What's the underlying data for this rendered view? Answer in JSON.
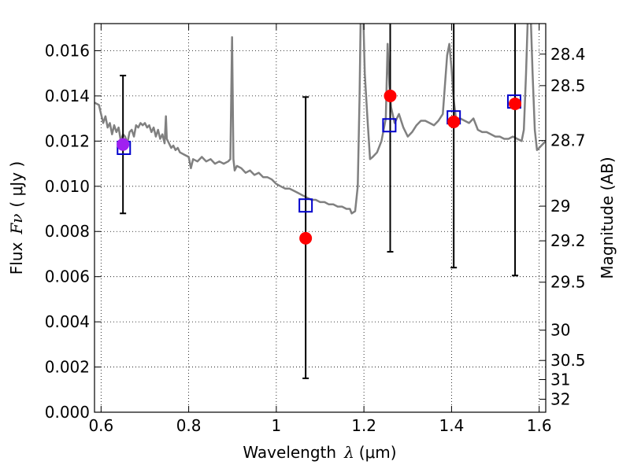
{
  "chart_data": {
    "type": "scatter",
    "xlabel": {
      "text": "Wavelength",
      "symbol": "λ",
      "unit": "(μm)"
    },
    "ylabel": {
      "text": "Flux",
      "symbol": "Fν",
      "unit": "( μJy )"
    },
    "ylabel_right": "Magnitude (AB)",
    "xlim": [
      0.585,
      1.615
    ],
    "ylim": [
      0.0,
      0.0172
    ],
    "grid": true,
    "grid_style": "dotted",
    "x_ticks": [
      {
        "value": 0.6,
        "label": "0.6"
      },
      {
        "value": 0.8,
        "label": "0.8"
      },
      {
        "value": 1.0,
        "label": "1"
      },
      {
        "value": 1.2,
        "label": "1.2"
      },
      {
        "value": 1.4,
        "label": "1.4"
      },
      {
        "value": 1.6,
        "label": "1.6"
      }
    ],
    "y_ticks": [
      {
        "value": 0.0,
        "label": "0.000"
      },
      {
        "value": 0.002,
        "label": "0.002"
      },
      {
        "value": 0.004,
        "label": "0.004"
      },
      {
        "value": 0.006,
        "label": "0.006"
      },
      {
        "value": 0.008,
        "label": "0.008"
      },
      {
        "value": 0.01,
        "label": "0.010"
      },
      {
        "value": 0.012,
        "label": "0.012"
      },
      {
        "value": 0.014,
        "label": "0.014"
      },
      {
        "value": 0.016,
        "label": "0.016"
      }
    ],
    "magnitude_ticks": [
      {
        "mag": 28.4,
        "label": "28.4"
      },
      {
        "mag": 28.5,
        "label": "28.5"
      },
      {
        "mag": 28.7,
        "label": "28.7"
      },
      {
        "mag": 29.0,
        "label": "29"
      },
      {
        "mag": 29.2,
        "label": "29.2"
      },
      {
        "mag": 29.5,
        "label": "29.5"
      },
      {
        "mag": 30.0,
        "label": "30"
      },
      {
        "mag": 30.5,
        "label": "30.5"
      },
      {
        "mag": 31.0,
        "label": "31"
      },
      {
        "mag": 32.0,
        "label": "32"
      }
    ],
    "colors": {
      "spectrum": "#808080",
      "observed": "#ff0000",
      "model": "#0000cc",
      "errorbar": "#000000",
      "overlap": "#a020f0"
    },
    "series": [
      {
        "type": "line",
        "points": [
          [
            0.585,
            0.0137
          ],
          [
            0.595,
            0.0136
          ],
          [
            0.6,
            0.0132
          ],
          [
            0.605,
            0.0128
          ],
          [
            0.61,
            0.0131
          ],
          [
            0.615,
            0.0126
          ],
          [
            0.62,
            0.0128
          ],
          [
            0.625,
            0.0123
          ],
          [
            0.63,
            0.0127
          ],
          [
            0.635,
            0.0124
          ],
          [
            0.64,
            0.0126
          ],
          [
            0.645,
            0.012
          ],
          [
            0.65,
            0.0123
          ],
          [
            0.655,
            0.0122
          ],
          [
            0.66,
            0.0119
          ],
          [
            0.665,
            0.0124
          ],
          [
            0.67,
            0.0125
          ],
          [
            0.675,
            0.0122
          ],
          [
            0.68,
            0.0127
          ],
          [
            0.685,
            0.0126
          ],
          [
            0.69,
            0.0128
          ],
          [
            0.695,
            0.0127
          ],
          [
            0.7,
            0.0128
          ],
          [
            0.705,
            0.0126
          ],
          [
            0.71,
            0.0127
          ],
          [
            0.715,
            0.0124
          ],
          [
            0.72,
            0.0126
          ],
          [
            0.725,
            0.0122
          ],
          [
            0.73,
            0.0125
          ],
          [
            0.735,
            0.0121
          ],
          [
            0.74,
            0.0123
          ],
          [
            0.745,
            0.0119
          ],
          [
            0.748,
            0.0131
          ],
          [
            0.75,
            0.0121
          ],
          [
            0.755,
            0.0119
          ],
          [
            0.76,
            0.0117
          ],
          [
            0.765,
            0.0118
          ],
          [
            0.77,
            0.0116
          ],
          [
            0.775,
            0.0117
          ],
          [
            0.78,
            0.0115
          ],
          [
            0.79,
            0.0114
          ],
          [
            0.8,
            0.0113
          ],
          [
            0.805,
            0.0108
          ],
          [
            0.81,
            0.0112
          ],
          [
            0.82,
            0.0111
          ],
          [
            0.83,
            0.0113
          ],
          [
            0.84,
            0.0111
          ],
          [
            0.85,
            0.0112
          ],
          [
            0.86,
            0.011
          ],
          [
            0.87,
            0.0111
          ],
          [
            0.88,
            0.011
          ],
          [
            0.89,
            0.0111
          ],
          [
            0.895,
            0.0112
          ],
          [
            0.899,
            0.0166
          ],
          [
            0.902,
            0.0112
          ],
          [
            0.905,
            0.0107
          ],
          [
            0.91,
            0.0109
          ],
          [
            0.92,
            0.0108
          ],
          [
            0.93,
            0.0106
          ],
          [
            0.94,
            0.0107
          ],
          [
            0.95,
            0.0105
          ],
          [
            0.96,
            0.0106
          ],
          [
            0.97,
            0.0104
          ],
          [
            0.98,
            0.0104
          ],
          [
            0.99,
            0.0103
          ],
          [
            1.0,
            0.0101
          ],
          [
            1.01,
            0.01
          ],
          [
            1.02,
            0.0099
          ],
          [
            1.03,
            0.0099
          ],
          [
            1.04,
            0.0098
          ],
          [
            1.05,
            0.0097
          ],
          [
            1.06,
            0.0096
          ],
          [
            1.07,
            0.0095
          ],
          [
            1.08,
            0.0094
          ],
          [
            1.09,
            0.0094
          ],
          [
            1.1,
            0.0093
          ],
          [
            1.11,
            0.0093
          ],
          [
            1.12,
            0.0092
          ],
          [
            1.13,
            0.0092
          ],
          [
            1.14,
            0.0091
          ],
          [
            1.15,
            0.0091
          ],
          [
            1.16,
            0.009
          ],
          [
            1.168,
            0.009
          ],
          [
            1.172,
            0.0088
          ],
          [
            1.18,
            0.0089
          ],
          [
            1.186,
            0.01
          ],
          [
            1.19,
            0.014
          ],
          [
            1.193,
            0.018
          ],
          [
            1.198,
            0.018
          ],
          [
            1.202,
            0.015
          ],
          [
            1.208,
            0.013
          ],
          [
            1.214,
            0.0112
          ],
          [
            1.22,
            0.0113
          ],
          [
            1.23,
            0.0115
          ],
          [
            1.24,
            0.012
          ],
          [
            1.25,
            0.013
          ],
          [
            1.254,
            0.0163
          ],
          [
            1.258,
            0.0145
          ],
          [
            1.262,
            0.0135
          ],
          [
            1.27,
            0.0128
          ],
          [
            1.28,
            0.0132
          ],
          [
            1.29,
            0.0126
          ],
          [
            1.3,
            0.0122
          ],
          [
            1.31,
            0.0124
          ],
          [
            1.32,
            0.0127
          ],
          [
            1.33,
            0.0129
          ],
          [
            1.34,
            0.0129
          ],
          [
            1.35,
            0.0128
          ],
          [
            1.36,
            0.0127
          ],
          [
            1.37,
            0.0129
          ],
          [
            1.38,
            0.0132
          ],
          [
            1.39,
            0.0158
          ],
          [
            1.395,
            0.0163
          ],
          [
            1.4,
            0.0152
          ],
          [
            1.405,
            0.0138
          ],
          [
            1.41,
            0.013
          ],
          [
            1.42,
            0.013
          ],
          [
            1.43,
            0.0129
          ],
          [
            1.44,
            0.0128
          ],
          [
            1.45,
            0.013
          ],
          [
            1.46,
            0.0125
          ],
          [
            1.47,
            0.0124
          ],
          [
            1.48,
            0.0124
          ],
          [
            1.49,
            0.0123
          ],
          [
            1.5,
            0.0122
          ],
          [
            1.51,
            0.0122
          ],
          [
            1.52,
            0.0121
          ],
          [
            1.53,
            0.0121
          ],
          [
            1.54,
            0.0122
          ],
          [
            1.55,
            0.0121
          ],
          [
            1.56,
            0.012
          ],
          [
            1.565,
            0.0125
          ],
          [
            1.57,
            0.015
          ],
          [
            1.575,
            0.018
          ],
          [
            1.58,
            0.018
          ],
          [
            1.585,
            0.015
          ],
          [
            1.59,
            0.0125
          ],
          [
            1.595,
            0.0116
          ],
          [
            1.6,
            0.0117
          ],
          [
            1.605,
            0.0118
          ],
          [
            1.615,
            0.012
          ]
        ]
      },
      {
        "type": "scatter",
        "marker": "circle",
        "points": [
          {
            "x": 0.65,
            "y": 0.01185,
            "yerr_low": 0.0088,
            "yerr_high": 0.0149
          },
          {
            "x": 1.067,
            "y": 0.0077,
            "yerr_low": 0.0015,
            "yerr_high": 0.01395
          },
          {
            "x": 1.26,
            "y": 0.014,
            "yerr_low": 0.0071,
            "yerr_high": 0.02
          },
          {
            "x": 1.405,
            "y": 0.01285,
            "yerr_low": 0.0064,
            "yerr_high": 0.02
          },
          {
            "x": 1.545,
            "y": 0.01365,
            "yerr_low": 0.00605,
            "yerr_high": 0.02
          }
        ]
      },
      {
        "type": "scatter",
        "marker": "square",
        "points": [
          {
            "x": 0.652,
            "y": 0.0117
          },
          {
            "x": 1.067,
            "y": 0.00915
          },
          {
            "x": 1.258,
            "y": 0.0127
          },
          {
            "x": 1.405,
            "y": 0.01305
          },
          {
            "x": 1.543,
            "y": 0.01375
          }
        ]
      }
    ]
  }
}
